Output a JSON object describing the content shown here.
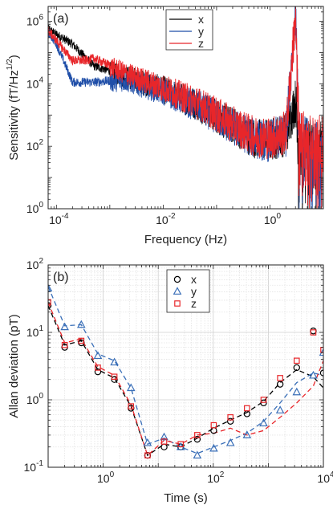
{
  "chart_data": [
    {
      "type": "line",
      "panel_label": "(a)",
      "xlabel": "Frequency (Hz)",
      "ylabel": "Sensitivity (fT/Hz",
      "ylabel_exp": "1/2",
      "ylabel_close": ")",
      "xscale": "log",
      "yscale": "log",
      "xlim": [
        7e-05,
        10
      ],
      "ylim": [
        1,
        3000000
      ],
      "grid": false,
      "legend_position": "top-right",
      "x_ticks": [
        {
          "base": "10",
          "exp": "-4",
          "value": 0.0001
        },
        {
          "base": "10",
          "exp": "-2",
          "value": 0.01
        },
        {
          "base": "10",
          "exp": "0",
          "value": 1
        }
      ],
      "y_ticks": [
        {
          "base": "10",
          "exp": "0",
          "value": 1
        },
        {
          "base": "10",
          "exp": "2",
          "value": 100
        },
        {
          "base": "10",
          "exp": "4",
          "value": 10000
        },
        {
          "base": "10",
          "exp": "6",
          "value": 1000000
        }
      ],
      "series": [
        {
          "name": "x",
          "color": "#000000",
          "trend": [
            [
              7e-05,
              600000
            ],
            [
              0.0002,
              200000
            ],
            [
              0.0005,
              40000
            ],
            [
              0.002,
              20000
            ],
            [
              0.01,
              8000
            ],
            [
              0.05,
              2500
            ],
            [
              0.2,
              600
            ],
            [
              0.5,
              250
            ],
            [
              1,
              220
            ],
            [
              2,
              350
            ],
            [
              3,
              4000
            ],
            [
              3.5,
              500
            ],
            [
              5,
              250
            ],
            [
              10,
              200
            ]
          ]
        },
        {
          "name": "y",
          "color": "#1f4ea8",
          "trend": [
            [
              7e-05,
              500000
            ],
            [
              0.0001,
              200000
            ],
            [
              0.00015,
              40000
            ],
            [
              0.0002,
              12000
            ],
            [
              0.0005,
              12000
            ],
            [
              0.002,
              15000
            ],
            [
              0.01,
              7000
            ],
            [
              0.05,
              2200
            ],
            [
              0.2,
              550
            ],
            [
              0.5,
              240
            ],
            [
              1,
              200
            ],
            [
              2,
              330
            ],
            [
              3,
              3000000
            ],
            [
              3.5,
              450
            ],
            [
              5,
              230
            ],
            [
              10,
              190
            ]
          ]
        },
        {
          "name": "z",
          "color": "#e8262a",
          "trend": [
            [
              7e-05,
              550000
            ],
            [
              0.0002,
              60000
            ],
            [
              0.00035,
              60000
            ],
            [
              0.0005,
              70000
            ],
            [
              0.002,
              25000
            ],
            [
              0.01,
              9000
            ],
            [
              0.05,
              2800
            ],
            [
              0.2,
              650
            ],
            [
              0.5,
              280
            ],
            [
              1,
              250
            ],
            [
              2,
              380
            ],
            [
              3,
              2000000
            ],
            [
              3.5,
              600
            ],
            [
              5,
              300
            ],
            [
              10,
              230
            ]
          ]
        }
      ]
    },
    {
      "type": "scatter",
      "panel_label": "(b)",
      "xlabel": "Time (s)",
      "ylabel": "Allan deviation (pT)",
      "xscale": "log",
      "yscale": "log",
      "xlim": [
        0.1,
        10000
      ],
      "ylim": [
        0.1,
        100
      ],
      "grid": true,
      "legend_position": "top-center",
      "x_ticks": [
        {
          "base": "10",
          "exp": "0",
          "value": 1
        },
        {
          "base": "10",
          "exp": "2",
          "value": 100
        },
        {
          "base": "10",
          "exp": "4",
          "value": 10000
        }
      ],
      "y_ticks": [
        {
          "base": "10",
          "exp": "-1",
          "value": 0.1
        },
        {
          "base": "10",
          "exp": "0",
          "value": 1
        },
        {
          "base": "10",
          "exp": "1",
          "value": 10
        },
        {
          "base": "10",
          "exp": "2",
          "value": 100
        }
      ],
      "series": [
        {
          "name": "x",
          "color": "#000000",
          "marker": "circle",
          "points": [
            [
              0.1,
              25
            ],
            [
              0.2,
              6
            ],
            [
              0.4,
              7
            ],
            [
              0.8,
              2.6
            ],
            [
              1.6,
              2.0
            ],
            [
              3.2,
              0.75
            ],
            [
              6.4,
              0.15
            ],
            [
              12.8,
              0.2
            ],
            [
              25.6,
              0.2
            ],
            [
              51.2,
              0.26
            ],
            [
              102,
              0.35
            ],
            [
              205,
              0.48
            ],
            [
              410,
              0.62
            ],
            [
              820,
              0.9
            ],
            [
              1640,
              1.7
            ],
            [
              3280,
              3.0
            ],
            [
              6560,
              10.5
            ],
            [
              10000,
              2.5
            ]
          ],
          "dashed": [
            [
              0.1,
              25
            ],
            [
              0.2,
              6.5
            ],
            [
              0.4,
              7.5
            ],
            [
              0.8,
              2.8
            ],
            [
              1.6,
              2.1
            ],
            [
              3.2,
              0.8
            ],
            [
              6.4,
              0.15
            ],
            [
              12.8,
              0.22
            ],
            [
              25.6,
              0.2
            ],
            [
              51.2,
              0.27
            ],
            [
              102,
              0.38
            ],
            [
              205,
              0.5
            ],
            [
              410,
              0.65
            ],
            [
              820,
              0.95
            ],
            [
              1640,
              1.8
            ],
            [
              3280,
              2.8
            ],
            [
              6560,
              2.2
            ],
            [
              10000,
              1.5
            ]
          ]
        },
        {
          "name": "y",
          "color": "#3a6fb8",
          "marker": "triangle",
          "points": [
            [
              0.1,
              45
            ],
            [
              0.2,
              12
            ],
            [
              0.4,
              13
            ],
            [
              0.8,
              4.5
            ],
            [
              1.6,
              3.6
            ],
            [
              3.2,
              1.5
            ],
            [
              6.4,
              0.23
            ],
            [
              12.8,
              0.28
            ],
            [
              25.6,
              0.2
            ],
            [
              51.2,
              0.15
            ],
            [
              102,
              0.19
            ],
            [
              205,
              0.23
            ],
            [
              410,
              0.3
            ],
            [
              820,
              0.45
            ],
            [
              1640,
              0.7
            ],
            [
              3280,
              1.3
            ],
            [
              6560,
              2.3
            ],
            [
              10000,
              5.0
            ]
          ],
          "dashed": [
            [
              0.1,
              48
            ],
            [
              0.2,
              12.5
            ],
            [
              0.4,
              13
            ],
            [
              0.8,
              4.8
            ],
            [
              1.6,
              3.8
            ],
            [
              3.2,
              1.5
            ],
            [
              6.4,
              0.22
            ],
            [
              12.8,
              0.27
            ],
            [
              25.6,
              0.2
            ],
            [
              51.2,
              0.16
            ],
            [
              102,
              0.2
            ],
            [
              205,
              0.25
            ],
            [
              410,
              0.32
            ],
            [
              820,
              0.48
            ],
            [
              1640,
              0.9
            ],
            [
              3280,
              1.8
            ],
            [
              6560,
              2.5
            ],
            [
              10000,
              2.3
            ]
          ]
        },
        {
          "name": "z",
          "color": "#e8262a",
          "marker": "square",
          "points": [
            [
              0.1,
              28
            ],
            [
              0.2,
              6.5
            ],
            [
              0.4,
              7.5
            ],
            [
              0.8,
              3.0
            ],
            [
              1.6,
              2.2
            ],
            [
              3.2,
              0.8
            ],
            [
              6.4,
              0.15
            ],
            [
              12.8,
              0.24
            ],
            [
              25.6,
              0.22
            ],
            [
              51.2,
              0.3
            ],
            [
              102,
              0.42
            ],
            [
              205,
              0.55
            ],
            [
              410,
              0.75
            ],
            [
              820,
              1.0
            ],
            [
              1640,
              2.1
            ],
            [
              3280,
              3.8
            ],
            [
              6560,
              10.0
            ],
            [
              10000,
              5.5
            ]
          ],
          "dashed": [
            [
              0.1,
              28
            ],
            [
              0.2,
              7
            ],
            [
              0.4,
              8
            ],
            [
              0.8,
              3.1
            ],
            [
              1.6,
              2.3
            ],
            [
              3.2,
              0.85
            ],
            [
              6.4,
              0.15
            ],
            [
              12.8,
              0.25
            ],
            [
              25.6,
              0.22
            ],
            [
              51.2,
              0.3
            ],
            [
              102,
              0.32
            ],
            [
              205,
              0.38
            ],
            [
              410,
              0.3
            ],
            [
              820,
              0.35
            ],
            [
              1640,
              0.55
            ],
            [
              3280,
              0.9
            ],
            [
              6560,
              1.6
            ],
            [
              10000,
              3.8
            ]
          ]
        }
      ]
    }
  ]
}
